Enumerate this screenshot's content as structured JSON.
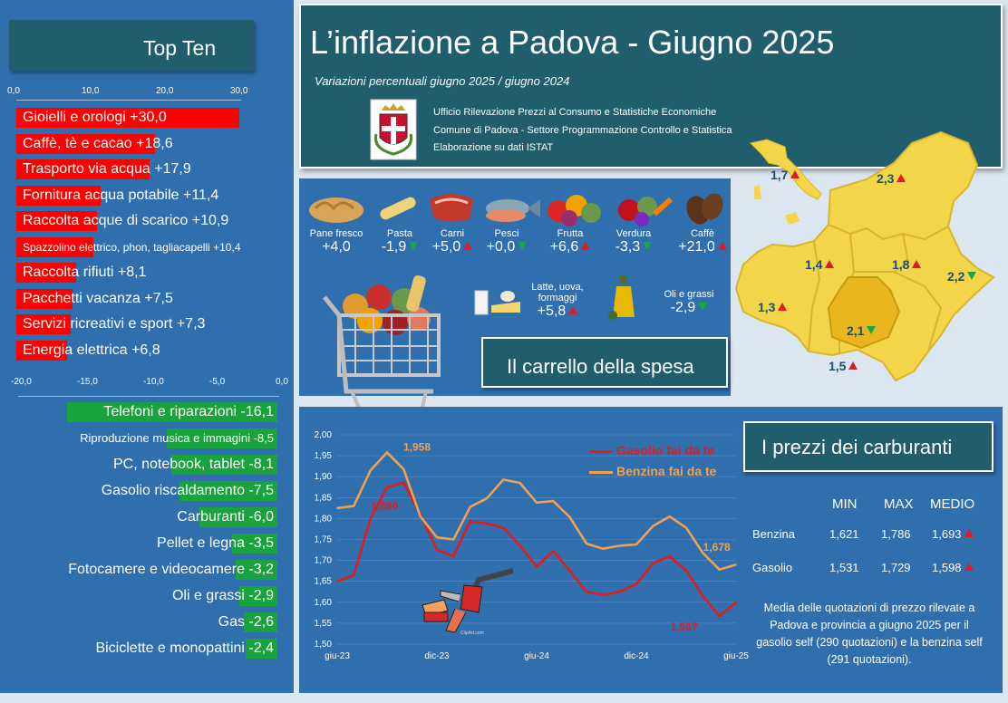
{
  "header": {
    "title": "L’inflazione a Padova - Giugno 2025",
    "subtitle": "Variazioni percentuali giugno 2025 / giugno 2024",
    "source_lines": [
      "Ufficio Rilevazione Prezzi al Consumo e Statistiche Economiche",
      "Comune di Padova -  Settore Programmazione Controllo e Statistica",
      "Elaborazione su dati ISTAT"
    ]
  },
  "top_ten": {
    "title": "Top Ten",
    "axis_ticks": [
      "0,0",
      "10,0",
      "20,0",
      "30,0"
    ],
    "items": [
      {
        "label": "Gioielli e orologi +30,0",
        "value": 30.0
      },
      {
        "label": "Caffè, tè e cacao +18,6",
        "value": 18.6
      },
      {
        "label": "Trasporto via acqua +17,9",
        "value": 17.9
      },
      {
        "label": "Fornitura acqua potabile +11,4",
        "value": 11.4
      },
      {
        "label": "Raccolta acque di scarico +10,9",
        "value": 10.9
      },
      {
        "label": "Spazzolino elettrico, phon, tagliacapelli +10,4",
        "value": 10.4,
        "small": true
      },
      {
        "label": "Raccolta rifiuti +8,1",
        "value": 8.1
      },
      {
        "label": "Pacchetti vacanza +7,5",
        "value": 7.5
      },
      {
        "label": "Servizi ricreativi e sport +7,3",
        "value": 7.3
      },
      {
        "label": "Energia elettrica +6,8",
        "value": 6.8
      }
    ]
  },
  "bottom_ten": {
    "axis_ticks": [
      "-20,0",
      "-15,0",
      "-10,0",
      "-5,0",
      "0,0"
    ],
    "items": [
      {
        "label": "Telefoni e riparazioni -16,1",
        "value": -16.1
      },
      {
        "label": "Riproduzione musica e immagini -8,5",
        "value": -8.5,
        "small": true
      },
      {
        "label": "PC, notebook, tablet -8,1",
        "value": -8.1
      },
      {
        "label": "Gasolio riscaldamento -7,5",
        "value": -7.5
      },
      {
        "label": "Carburanti -6,0",
        "value": -6.0
      },
      {
        "label": "Pellet e legna -3,5",
        "value": -3.5
      },
      {
        "label": "Fotocamere e videocamere -3,2",
        "value": -3.2
      },
      {
        "label": "Oli e grassi -2,9",
        "value": -2.9
      },
      {
        "label": "Gas -2,6",
        "value": -2.6
      },
      {
        "label": "Biciclette e monopattini -2,4",
        "value": -2.4
      }
    ]
  },
  "carrello": {
    "title": "Il carrello della spesa",
    "items": [
      {
        "name": "Pane fresco",
        "value": "+4,0",
        "dir": "none"
      },
      {
        "name": "Pasta",
        "value": "-1,9",
        "dir": "down"
      },
      {
        "name": "Carni",
        "value": "+5,0",
        "dir": "up"
      },
      {
        "name": "Pesci",
        "value": "+0,0",
        "dir": "down"
      },
      {
        "name": "Frutta",
        "value": "+6,6",
        "dir": "up"
      },
      {
        "name": "Verdura",
        "value": "-3,3",
        "dir": "down"
      },
      {
        "name": "Caffè",
        "value": "+21,0",
        "dir": "up"
      },
      {
        "name": "Latte, uova, formaggi",
        "value": "+5,8",
        "dir": "up"
      },
      {
        "name": "Oli e grassi",
        "value": "-2,9",
        "dir": "down"
      }
    ]
  },
  "map": {
    "italy": {
      "value": "1,7",
      "dir": "up"
    },
    "provinces": [
      {
        "value": "2,3",
        "dir": "up"
      },
      {
        "value": "1,4",
        "dir": "up"
      },
      {
        "value": "1,8",
        "dir": "up"
      },
      {
        "value": "2,2",
        "dir": "down"
      },
      {
        "value": "1,3",
        "dir": "up"
      },
      {
        "value": "2,1",
        "dir": "down"
      },
      {
        "value": "1,5",
        "dir": "up"
      }
    ]
  },
  "carburanti": {
    "title": "I prezzi dei carburanti",
    "table": {
      "headers": [
        "MIN",
        "MAX",
        "MEDIO"
      ],
      "rows": [
        {
          "name": "Benzina",
          "min": "1,621",
          "max": "1,786",
          "medio": "1,693",
          "dir": "up"
        },
        {
          "name": "Gasolio",
          "min": "1,531",
          "max": "1,729",
          "medio": "1,598",
          "dir": "up"
        }
      ]
    },
    "note": "Media delle quotazioni di prezzo rilevate a Padova e provincia a giugno 2025 per il gasolio self (290 quotazioni) e la benzina self (291 quotazioni).",
    "watermark": "ClipArt.com"
  },
  "chart_data": {
    "type": "line",
    "x": [
      "giu-23",
      "lug-23",
      "ago-23",
      "set-23",
      "ott-23",
      "nov-23",
      "dic-23",
      "gen-24",
      "feb-24",
      "mar-24",
      "apr-24",
      "mag-24",
      "giu-24",
      "lug-24",
      "ago-24",
      "set-24",
      "ott-24",
      "nov-24",
      "dic-24",
      "gen-25",
      "feb-25",
      "mar-25",
      "apr-25",
      "mag-25",
      "giu-25"
    ],
    "x_tick_labels": [
      "giu-23",
      "dic-23",
      "giu-24",
      "dic-24",
      "giu-25"
    ],
    "y_ticks": [
      "2,00",
      "1,95",
      "1,90",
      "1,85",
      "1,80",
      "1,75",
      "1,70",
      "1,65",
      "1,60",
      "1,55",
      "1,50"
    ],
    "ylim": [
      1.5,
      2.0
    ],
    "series": [
      {
        "name": "Gasolio fai da te",
        "color": "#e41b1b",
        "values": [
          1.65,
          1.665,
          1.8,
          1.875,
          1.886,
          1.81,
          1.725,
          1.71,
          1.793,
          1.788,
          1.778,
          1.735,
          1.685,
          1.722,
          1.675,
          1.625,
          1.618,
          1.625,
          1.643,
          1.693,
          1.71,
          1.675,
          1.615,
          1.567,
          1.6
        ]
      },
      {
        "name": "Benzina fai da te",
        "color": "#f0a050",
        "values": [
          1.825,
          1.83,
          1.915,
          1.958,
          1.918,
          1.805,
          1.755,
          1.75,
          1.828,
          1.848,
          1.893,
          1.885,
          1.838,
          1.842,
          1.803,
          1.74,
          1.728,
          1.735,
          1.738,
          1.782,
          1.805,
          1.778,
          1.718,
          1.678,
          1.69
        ]
      }
    ],
    "annotations": [
      "1,958",
      "1,886",
      "1,678",
      "1,567"
    ]
  }
}
